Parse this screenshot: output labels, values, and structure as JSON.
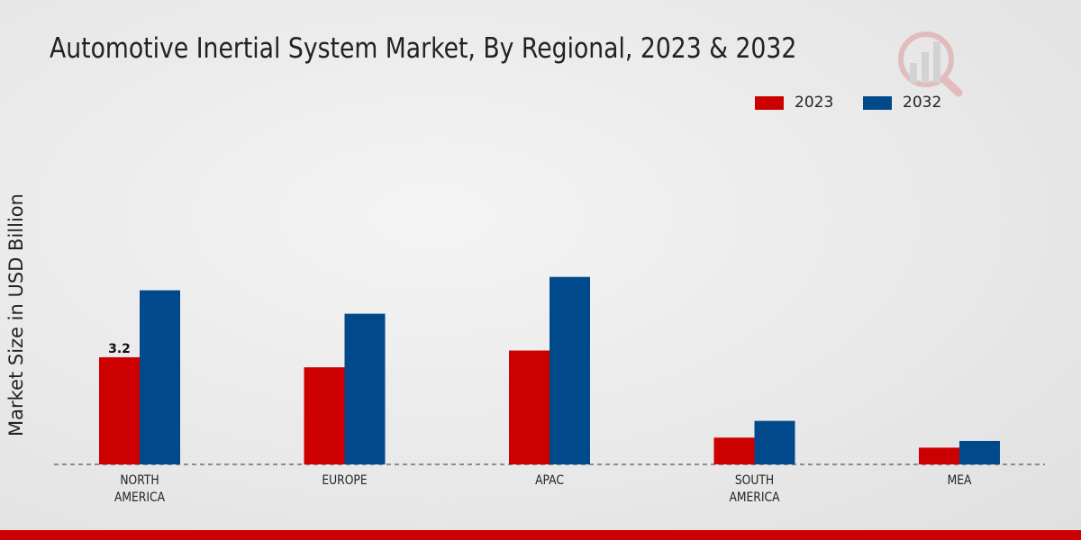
{
  "chart_data": {
    "type": "bar",
    "title": "Automotive Inertial System Market, By Regional, 2023 & 2032",
    "xlabel": "",
    "ylabel": "Market Size in USD Billion",
    "categories": [
      "NORTH AMERICA",
      "EUROPE",
      "APAC",
      "SOUTH AMERICA",
      "MEA"
    ],
    "category_lines": [
      [
        "NORTH",
        "AMERICA"
      ],
      [
        "EUROPE"
      ],
      [
        "APAC"
      ],
      [
        "SOUTH",
        "AMERICA"
      ],
      [
        "MEA"
      ]
    ],
    "series": [
      {
        "name": "2023",
        "color": "#cc0000",
        "values": [
          3.2,
          2.9,
          3.4,
          0.8,
          0.5
        ]
      },
      {
        "name": "2032",
        "color": "#004a8c",
        "values": [
          5.2,
          4.5,
          5.6,
          1.3,
          0.7
        ]
      }
    ],
    "data_labels": [
      {
        "series": 0,
        "index": 0,
        "text": "3.2"
      }
    ],
    "ylim": [
      0,
      9.5
    ],
    "grid": false,
    "legend_position": "top-right"
  }
}
